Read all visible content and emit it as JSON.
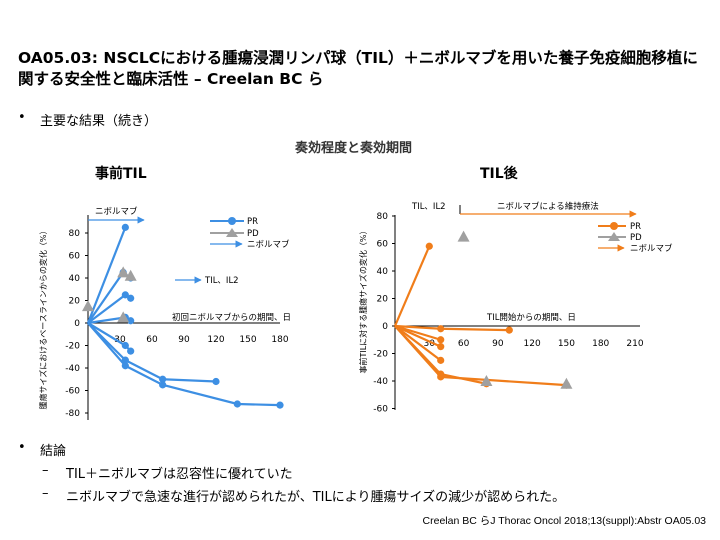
{
  "slide": {
    "title": "OA05.03: NSCLCにおける腫瘍浸潤リンパ球（TIL）＋ニボルマブを用いた養子免疫細胞移植に関する安全性と臨床活性 – Creelan BC ら",
    "bullet1": "主要な結果（続き）",
    "section_title": "奏効程度と奏効期間",
    "left_heading": "事前TIL",
    "right_heading": "TIL後",
    "conclusion_header": "結論",
    "conclusion_items": [
      "TIL＋ニボルマブは忍容性に優れていた",
      "ニボルマブで急速な進行が認められたが、TILにより腫瘍サイズの減少が認められた。"
    ],
    "citation": "Creelan BC らJ Thorac Oncol 2018;13(suppl):Abstr OA05.03",
    "bullet_symbol": "•",
    "dash_symbol": "–"
  },
  "colors": {
    "blue": "#3d8fe3",
    "orange": "#f07d1a",
    "gray": "#a0a0a0",
    "axis": "#000000"
  },
  "chart_data": [
    {
      "type": "line",
      "name": "pre-TIL",
      "title": "事前TIL",
      "ylabel": "腫瘍サイズにおけるベースラインからの変化（%）",
      "xlabel": "初回ニボルマブからの期間、日",
      "xlim": [
        0,
        180
      ],
      "ylim": [
        -80,
        80
      ],
      "xticks": [
        30,
        60,
        90,
        120,
        150,
        180
      ],
      "yticks": [
        -80,
        -60,
        -40,
        -20,
        0,
        20,
        40,
        60,
        80
      ],
      "period_label": "ニボルマブ",
      "annotation": "TIL、IL2",
      "annotation_x": 60,
      "annotation_y": 40,
      "legend": [
        "PR",
        "PD",
        "ニボルマブ"
      ],
      "color": "#3d8fe3",
      "series": [
        {
          "name": "patient-1",
          "x": [
            0,
            35
          ],
          "y": [
            0,
            85
          ]
        },
        {
          "name": "patient-2",
          "x": [
            0,
            33,
            40
          ],
          "y": [
            0,
            45,
            40
          ]
        },
        {
          "name": "patient-3",
          "x": [
            0,
            35,
            40
          ],
          "y": [
            0,
            25,
            22
          ]
        },
        {
          "name": "patient-4",
          "x": [
            0,
            35,
            40
          ],
          "y": [
            0,
            5,
            2
          ]
        },
        {
          "name": "patient-5",
          "x": [
            0,
            35,
            40
          ],
          "y": [
            0,
            -20,
            -25
          ]
        },
        {
          "name": "patient-6",
          "x": [
            0,
            35,
            70,
            120
          ],
          "y": [
            0,
            -33,
            -50,
            -52
          ]
        },
        {
          "name": "patient-7",
          "x": [
            0,
            35,
            70,
            140,
            180
          ],
          "y": [
            0,
            -38,
            -55,
            -72,
            -73
          ]
        }
      ],
      "pd_markers": [
        {
          "x": 0,
          "y": 15
        },
        {
          "x": 33,
          "y": 45
        },
        {
          "x": 40,
          "y": 42
        },
        {
          "x": 33,
          "y": 5
        }
      ]
    },
    {
      "type": "line",
      "name": "post-TIL",
      "title": "TIL後",
      "ylabel": "事前TILに対する腫瘍サイズの変化（%）",
      "xlabel": "TIL開始からの期間、日",
      "xlim": [
        0,
        210
      ],
      "ylim": [
        -60,
        80
      ],
      "xticks": [
        30,
        60,
        90,
        120,
        150,
        180,
        210
      ],
      "yticks": [
        -60,
        -40,
        -20,
        0,
        20,
        40,
        60,
        80
      ],
      "period_labels": [
        "TIL、IL2",
        "ニボルマブによる維持療法"
      ],
      "legend": [
        "PR",
        "PD",
        "ニボルマブ"
      ],
      "color": "#f07d1a",
      "series": [
        {
          "name": "patient-1",
          "x": [
            0,
            30
          ],
          "y": [
            0,
            58
          ]
        },
        {
          "name": "patient-2",
          "x": [
            0,
            40
          ],
          "y": [
            0,
            -10
          ]
        },
        {
          "name": "patient-3",
          "x": [
            0,
            40
          ],
          "y": [
            0,
            -15
          ]
        },
        {
          "name": "patient-4",
          "x": [
            0,
            40
          ],
          "y": [
            0,
            -25
          ]
        },
        {
          "name": "patient-5",
          "x": [
            0,
            40,
            80
          ],
          "y": [
            0,
            -35,
            -42
          ]
        },
        {
          "name": "patient-6",
          "x": [
            0,
            40,
            150
          ],
          "y": [
            0,
            -37,
            -43
          ]
        },
        {
          "name": "patient-7",
          "x": [
            0,
            40,
            100
          ],
          "y": [
            0,
            -2,
            -3
          ]
        }
      ],
      "pd_markers": [
        {
          "x": 60,
          "y": 65
        },
        {
          "x": 80,
          "y": -40
        },
        {
          "x": 150,
          "y": -42
        }
      ]
    }
  ]
}
